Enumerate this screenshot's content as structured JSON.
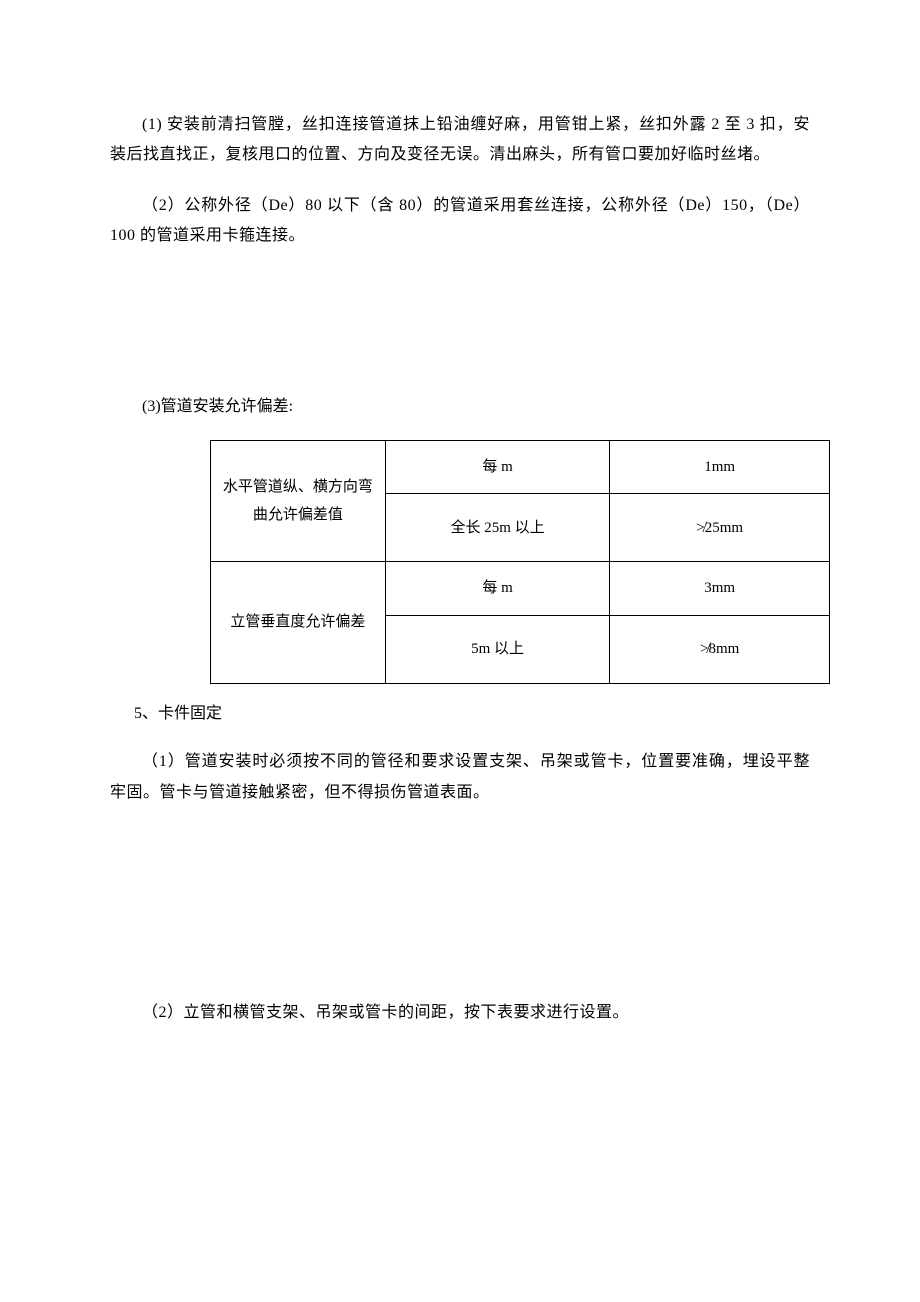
{
  "para1": "(1) 安装前清扫管膛，丝扣连接管道抹上铅油缠好麻，用管钳上紧，丝扣外露 2 至 3 扣，安装后找直找正，复核甩口的位置、方向及变径无误。清出麻头，所有管口要加好临时丝堵。",
  "para2": "（2）公称外径（De）80 以下（含 80）的管道采用套丝连接，公称外径（De）150，（De）100 的管道采用卡箍连接。",
  "heading3": "(3)管道安装允许偏差:",
  "table": {
    "row1_label": "水平管道纵、横方向弯曲允许偏差值",
    "row1a_cond": "每 m",
    "row1a_val": "1mm",
    "row1b_cond": "全长 25m 以上",
    "row1b_val": "≯25mm",
    "row2_label": "立管垂直度允许偏差",
    "row2a_cond": "每 m",
    "row2a_val": "3mm",
    "row2b_cond": "5m 以上",
    "row2b_val": "≯8mm"
  },
  "item5": "5、卡件固定",
  "para5_1": "（1）管道安装时必须按不同的管径和要求设置支架、吊架或管卡，位置要准确，埋设平整牢固。管卡与管道接触紧密，但不得损伤管道表面。",
  "para5_2": "（2）立管和横管支架、吊架或管卡的间距，按下表要求进行设置。"
}
